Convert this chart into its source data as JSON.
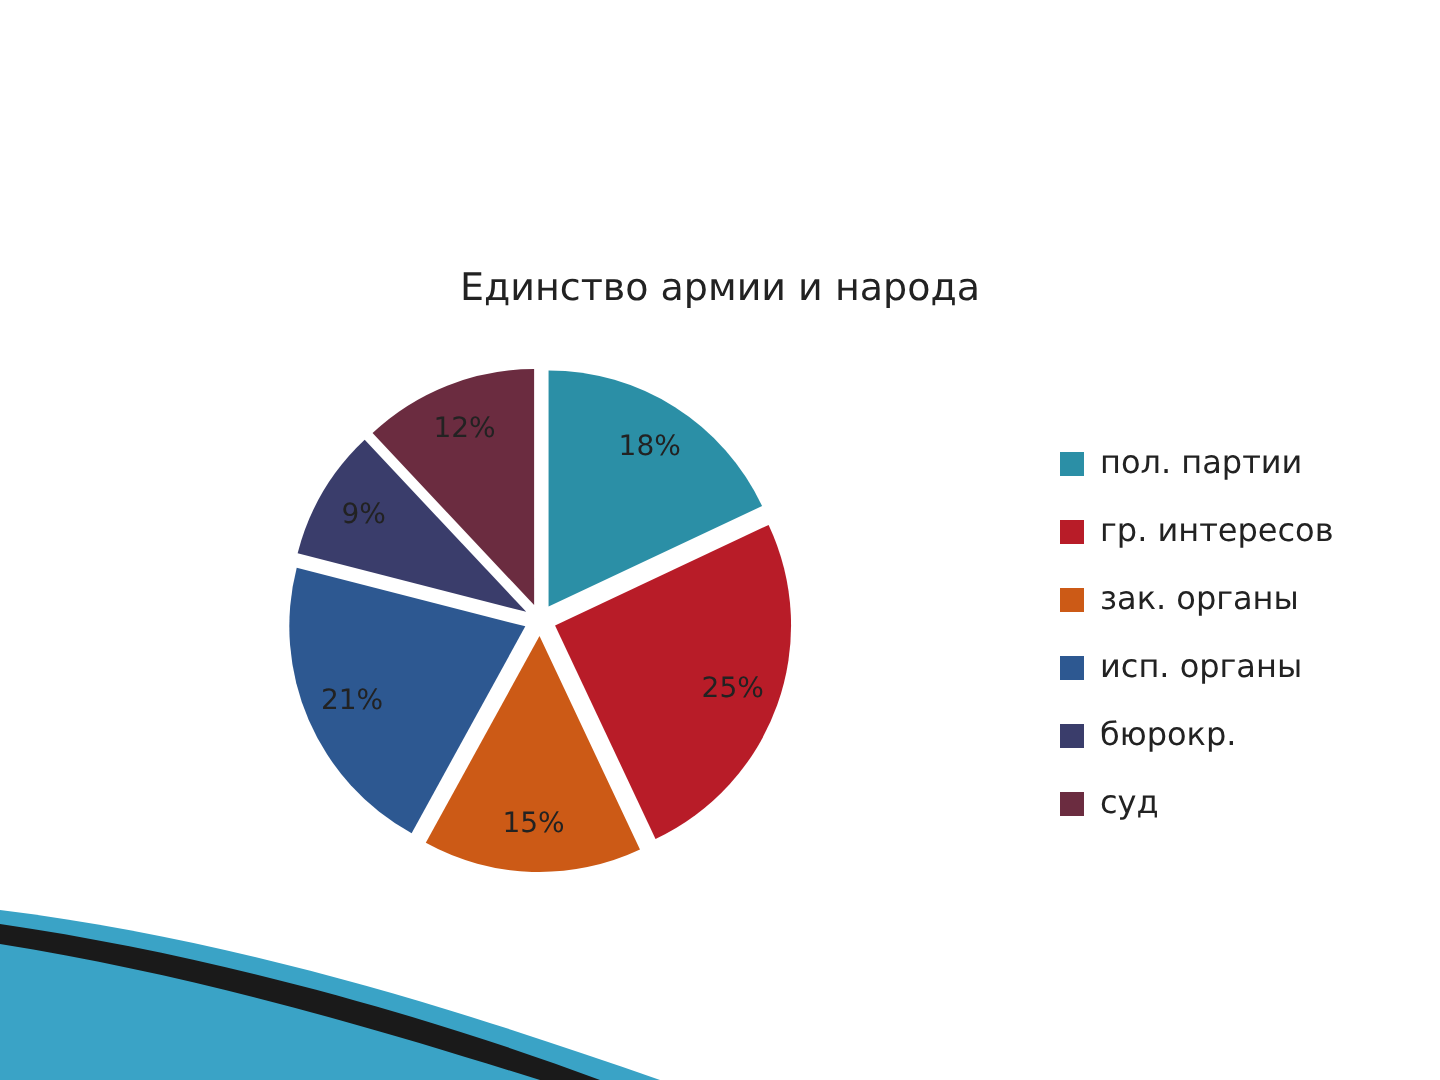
{
  "chart_data": {
    "type": "pie",
    "title": "Единство армии и народа",
    "categories": [
      "пол. партии",
      "гр. интересов",
      "зак. органы",
      "исп. органы",
      "бюрокр.",
      "суд"
    ],
    "values": [
      18,
      25,
      15,
      21,
      9,
      12
    ],
    "colors": [
      "#2b8fa6",
      "#b81c28",
      "#cc5a16",
      "#2d5891",
      "#3a3d6b",
      "#6b2c40"
    ],
    "value_labels": [
      "18%",
      "25%",
      "15%",
      "21%",
      "9%",
      "12%"
    ],
    "legend": "right"
  }
}
